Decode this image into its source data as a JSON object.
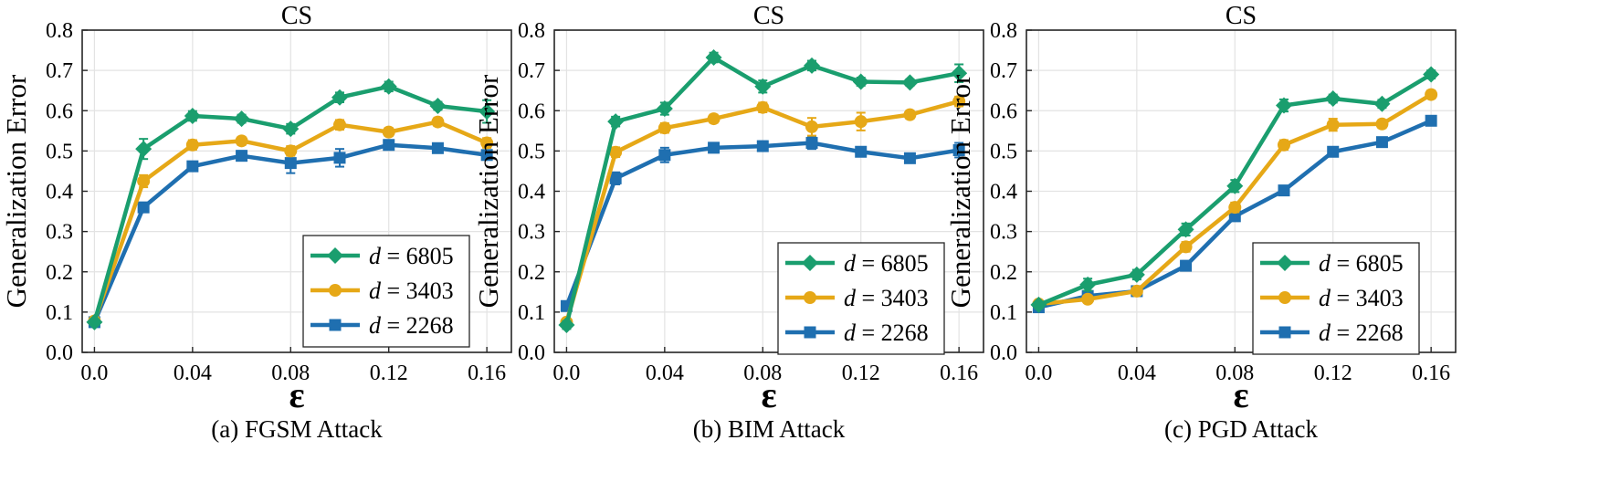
{
  "colors": {
    "series1": "#1a9e6e",
    "series2": "#e6a817",
    "series3": "#1f6fb0",
    "grid": "#e3e3e3",
    "axis": "#262626"
  },
  "chart_data": [
    {
      "type": "line",
      "title": "CS",
      "caption": "(a)  FGSM Attack",
      "xlabel": "ε",
      "ylabel": "Generalization Error",
      "x": [
        0.0,
        0.02,
        0.04,
        0.06,
        0.08,
        0.1,
        0.12,
        0.14,
        0.16
      ],
      "xlim": [
        -0.005,
        0.17
      ],
      "ylim": [
        0.0,
        0.8
      ],
      "xticks": [
        0.0,
        0.04,
        0.08,
        0.12,
        0.16
      ],
      "xtick_labels": [
        "0.0",
        "0.04",
        "0.08",
        "0.12",
        "0.16"
      ],
      "yticks": [
        0.0,
        0.1,
        0.2,
        0.3,
        0.4,
        0.5,
        0.6,
        0.7,
        0.8
      ],
      "ytick_labels": [
        "0.0",
        "0.1",
        "0.2",
        "0.3",
        "0.4",
        "0.5",
        "0.6",
        "0.7",
        "0.8"
      ],
      "grid": true,
      "legend_position": "bottom-right",
      "series": [
        {
          "name": "d = 6805",
          "legend_var": "d",
          "legend_val": "= 6805",
          "marker": "diamond",
          "values": [
            0.075,
            0.505,
            0.587,
            0.58,
            0.555,
            0.633,
            0.66,
            0.612,
            0.598
          ],
          "errors": [
            0.008,
            0.025,
            0.012,
            0.01,
            0.012,
            0.012,
            0.012,
            0.01,
            0.028
          ]
        },
        {
          "name": "d = 3403",
          "legend_var": "d",
          "legend_val": "= 3403",
          "marker": "circle",
          "values": [
            0.078,
            0.425,
            0.515,
            0.525,
            0.5,
            0.565,
            0.547,
            0.572,
            0.52
          ],
          "errors": [
            0.006,
            0.015,
            0.012,
            0.01,
            0.012,
            0.012,
            0.01,
            0.01,
            0.012
          ]
        },
        {
          "name": "d = 2268",
          "legend_var": "d",
          "legend_val": "= 2268",
          "marker": "square",
          "values": [
            0.075,
            0.36,
            0.462,
            0.488,
            0.47,
            0.483,
            0.515,
            0.507,
            0.49
          ],
          "errors": [
            0.006,
            0.01,
            0.01,
            0.012,
            0.025,
            0.022,
            0.012,
            0.01,
            0.01
          ]
        }
      ]
    },
    {
      "type": "line",
      "title": "CS",
      "caption": "(b)  BIM Attack",
      "xlabel": "ε",
      "ylabel": "Generalization Error",
      "x": [
        0.0,
        0.02,
        0.04,
        0.06,
        0.08,
        0.1,
        0.12,
        0.14,
        0.16
      ],
      "xlim": [
        -0.005,
        0.17
      ],
      "ylim": [
        0.0,
        0.8
      ],
      "xticks": [
        0.0,
        0.04,
        0.08,
        0.12,
        0.16
      ],
      "xtick_labels": [
        "0.0",
        "0.04",
        "0.08",
        "0.12",
        "0.16"
      ],
      "yticks": [
        0.0,
        0.1,
        0.2,
        0.3,
        0.4,
        0.5,
        0.6,
        0.7,
        0.8
      ],
      "ytick_labels": [
        "0.0",
        "0.1",
        "0.2",
        "0.3",
        "0.4",
        "0.5",
        "0.6",
        "0.7",
        "0.8"
      ],
      "grid": true,
      "legend_position": "bottom-right",
      "series": [
        {
          "name": "d = 6805",
          "legend_var": "d",
          "legend_val": "= 6805",
          "marker": "diamond",
          "values": [
            0.068,
            0.573,
            0.605,
            0.732,
            0.66,
            0.712,
            0.672,
            0.67,
            0.693
          ],
          "errors": [
            0.01,
            0.012,
            0.015,
            0.012,
            0.015,
            0.012,
            0.01,
            0.008,
            0.022
          ]
        },
        {
          "name": "d = 3403",
          "legend_var": "d",
          "legend_val": "= 3403",
          "marker": "circle",
          "values": [
            0.075,
            0.497,
            0.557,
            0.58,
            0.608,
            0.56,
            0.573,
            0.59,
            0.623
          ],
          "errors": [
            0.008,
            0.012,
            0.012,
            0.01,
            0.012,
            0.022,
            0.022,
            0.01,
            0.012
          ]
        },
        {
          "name": "d = 2268",
          "legend_var": "d",
          "legend_val": "= 2268",
          "marker": "square",
          "values": [
            0.115,
            0.432,
            0.49,
            0.508,
            0.512,
            0.52,
            0.498,
            0.482,
            0.502
          ],
          "errors": [
            0.008,
            0.015,
            0.018,
            0.012,
            0.012,
            0.015,
            0.01,
            0.008,
            0.018
          ]
        }
      ]
    },
    {
      "type": "line",
      "title": "CS",
      "caption": "(c)  PGD Attack",
      "xlabel": "ε",
      "ylabel": "Generalization Error",
      "x": [
        0.0,
        0.02,
        0.04,
        0.06,
        0.08,
        0.1,
        0.12,
        0.14,
        0.16
      ],
      "xlim": [
        -0.005,
        0.17
      ],
      "ylim": [
        0.0,
        0.8
      ],
      "xticks": [
        0.0,
        0.04,
        0.08,
        0.12,
        0.16
      ],
      "xtick_labels": [
        "0.0",
        "0.04",
        "0.08",
        "0.12",
        "0.16"
      ],
      "yticks": [
        0.0,
        0.1,
        0.2,
        0.3,
        0.4,
        0.5,
        0.6,
        0.7,
        0.8
      ],
      "ytick_labels": [
        "0.0",
        "0.1",
        "0.2",
        "0.3",
        "0.4",
        "0.5",
        "0.6",
        "0.7",
        "0.8"
      ],
      "grid": true,
      "legend_position": "bottom-right",
      "series": [
        {
          "name": "d = 6805",
          "legend_var": "d",
          "legend_val": "= 6805",
          "marker": "diamond",
          "values": [
            0.118,
            0.168,
            0.193,
            0.305,
            0.413,
            0.613,
            0.63,
            0.617,
            0.69
          ],
          "errors": [
            0.008,
            0.015,
            0.012,
            0.015,
            0.015,
            0.015,
            0.01,
            0.01,
            0.01
          ]
        },
        {
          "name": "d = 3403",
          "legend_var": "d",
          "legend_val": "= 3403",
          "marker": "circle",
          "values": [
            0.12,
            0.132,
            0.152,
            0.262,
            0.36,
            0.515,
            0.565,
            0.567,
            0.64
          ],
          "errors": [
            0.008,
            0.008,
            0.008,
            0.012,
            0.012,
            0.012,
            0.015,
            0.01,
            0.01
          ]
        },
        {
          "name": "d = 2268",
          "legend_var": "d",
          "legend_val": "= 2268",
          "marker": "square",
          "values": [
            0.112,
            0.14,
            0.152,
            0.215,
            0.338,
            0.402,
            0.498,
            0.522,
            0.575
          ],
          "errors": [
            0.008,
            0.008,
            0.008,
            0.012,
            0.012,
            0.01,
            0.01,
            0.01,
            0.01
          ]
        }
      ]
    }
  ]
}
